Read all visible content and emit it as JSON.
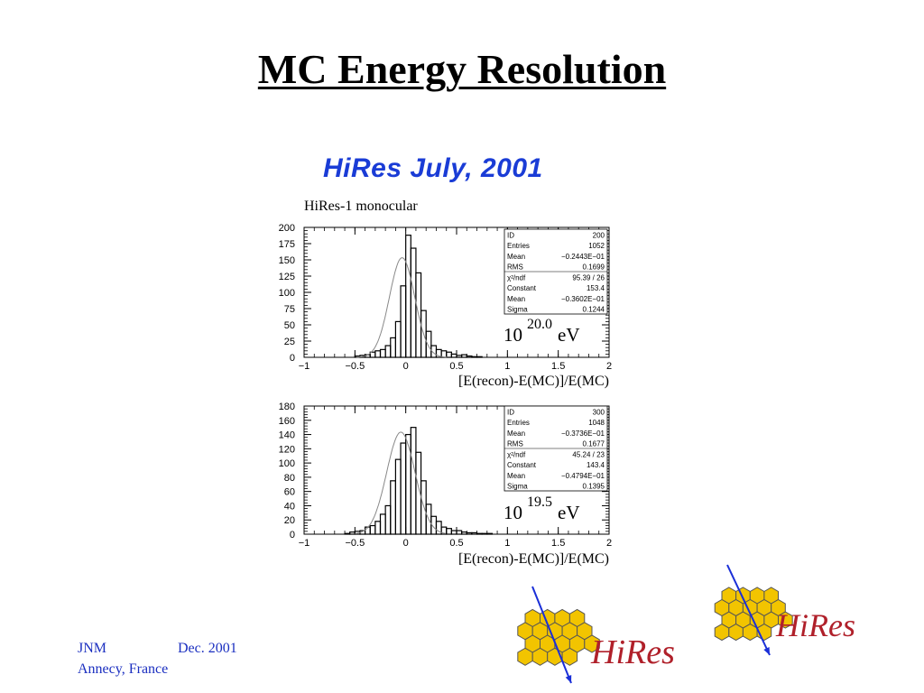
{
  "slide": {
    "title": "MC Energy Resolution",
    "subtitle": "HiRes July, 2001",
    "plot_label": "HiRes-1 monocular",
    "footer_left": "JNM",
    "footer_date": "Dec. 2001",
    "footer_place": "Annecy, France",
    "logo_text": "HiRes",
    "colors": {
      "subtitle": "#1a3cd6",
      "footer": "#1b2fc0",
      "logo_text": "#b0202a",
      "hex_fill": "#f2c400",
      "arrow": "#1a2fd8"
    }
  },
  "chart_data": [
    {
      "type": "bar",
      "xlabel": "[E(recon)-E(MC)]/E(MC)",
      "energy_base": "10",
      "energy_exp": "20.0",
      "energy_unit": "eV",
      "xlim": [
        -1,
        2
      ],
      "ylim": [
        0,
        200
      ],
      "xticks": [
        "-1",
        "-0.5",
        "0",
        "0.5",
        "1",
        "1.5",
        "2"
      ],
      "yticks": [
        "0",
        "25",
        "50",
        "75",
        "100",
        "125",
        "150",
        "175",
        "200"
      ],
      "bin_width": 0.05,
      "bin_start": -0.6,
      "values": [
        0,
        0,
        2,
        3,
        4,
        8,
        10,
        12,
        18,
        30,
        55,
        110,
        188,
        168,
        130,
        72,
        40,
        18,
        12,
        10,
        8,
        5,
        3,
        4,
        2,
        1,
        1,
        0,
        0
      ],
      "fit": {
        "constant": 153.4,
        "mean": -0.036,
        "sigma": 0.1244
      },
      "stats": [
        [
          "ID",
          "200"
        ],
        [
          "Entries",
          "1052"
        ],
        [
          "Mean",
          "−0.2443E−01"
        ],
        [
          "RMS",
          "0.1699"
        ],
        [
          "χ²/ndf",
          "95.39   /   26"
        ],
        [
          "Constant",
          "153.4"
        ],
        [
          "Mean",
          "−0.3602E−01"
        ],
        [
          "Sigma",
          "0.1244"
        ]
      ]
    },
    {
      "type": "bar",
      "xlabel": "[E(recon)-E(MC)]/E(MC)",
      "energy_base": "10",
      "energy_exp": "19.5",
      "energy_unit": "eV",
      "xlim": [
        -1,
        2
      ],
      "ylim": [
        0,
        180
      ],
      "xticks": [
        "-1",
        "-0.5",
        "0",
        "0.5",
        "1",
        "1.5",
        "2"
      ],
      "yticks": [
        "0",
        "20",
        "40",
        "60",
        "80",
        "100",
        "120",
        "140",
        "160",
        "180"
      ],
      "bin_width": 0.05,
      "bin_start": -0.65,
      "values": [
        0,
        1,
        3,
        4,
        5,
        10,
        12,
        18,
        28,
        40,
        75,
        105,
        128,
        140,
        150,
        115,
        75,
        42,
        25,
        18,
        10,
        8,
        5,
        5,
        3,
        2,
        2,
        1,
        1,
        1
      ],
      "fit": {
        "constant": 143.4,
        "mean": -0.048,
        "sigma": 0.1395
      },
      "stats": [
        [
          "ID",
          "300"
        ],
        [
          "Entries",
          "1048"
        ],
        [
          "Mean",
          "−0.3736E−01"
        ],
        [
          "RMS",
          "0.1677"
        ],
        [
          "χ²/ndf",
          "45.24   /   23"
        ],
        [
          "Constant",
          "143.4"
        ],
        [
          "Mean",
          "−0.4794E−01"
        ],
        [
          "Sigma",
          "0.1395"
        ]
      ]
    }
  ]
}
